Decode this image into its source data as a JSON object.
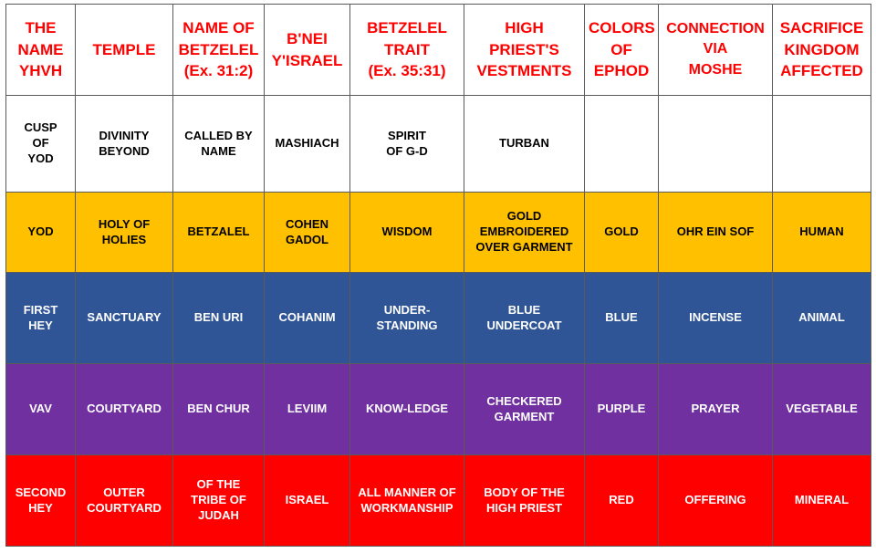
{
  "headers": [
    "THE\nNAME\nYHVH",
    "TEMPLE",
    "NAME OF\nBETZELEL\n(Ex. 31:2)",
    "B'NEI\nY'ISRAEL",
    "BETZELEL\nTRAIT\n(Ex. 35:31)",
    "HIGH\nPRIEST'S\nVESTMENTS",
    "COLORS\nOF\nEPHOD",
    "CONNECTION\nVIA\nMOSHE",
    "SACRIFICE\nKINGDOM\nAFFECTED"
  ],
  "rows": [
    {
      "color": "#ffffff",
      "cells": [
        "CUSP\nOF\nYOD",
        "DIVINITY\nBEYOND",
        "CALLED BY\nNAME",
        "MASHIACH",
        "SPIRIT\nOF G-D",
        "TURBAN",
        "",
        "",
        ""
      ]
    },
    {
      "color": "#ffc000",
      "cells": [
        "YOD",
        "HOLY OF\nHOLIES",
        "BETZALEL",
        "COHEN\nGADOL",
        "WISDOM",
        "GOLD\nEMBROIDERED\nOVER GARMENT",
        "GOLD",
        "OHR EIN SOF",
        "HUMAN"
      ]
    },
    {
      "color": "#2f5597",
      "cells": [
        "FIRST\nHEY",
        "SANCTUARY",
        "BEN URI",
        "COHANIM",
        "UNDER-\nSTANDING",
        "BLUE\nUNDERCOAT",
        "BLUE",
        "INCENSE",
        "ANIMAL"
      ]
    },
    {
      "color": "#7030a0",
      "cells": [
        "VAV",
        "COURTYARD",
        "BEN CHUR",
        "LEVIIM",
        "KNOW-LEDGE",
        "CHECKERED\nGARMENT",
        "PURPLE",
        "PRAYER",
        "VEGETABLE"
      ]
    },
    {
      "color": "#ff0000",
      "cells": [
        "SECOND\nHEY",
        "OUTER\nCOURTYARD",
        "OF THE\nTRIBE OF\nJUDAH",
        "ISRAEL",
        "ALL MANNER OF\nWORKMANSHIP",
        "BODY OF THE\nHIGH PRIEST",
        "RED",
        "OFFERING",
        "MINERAL"
      ]
    }
  ]
}
